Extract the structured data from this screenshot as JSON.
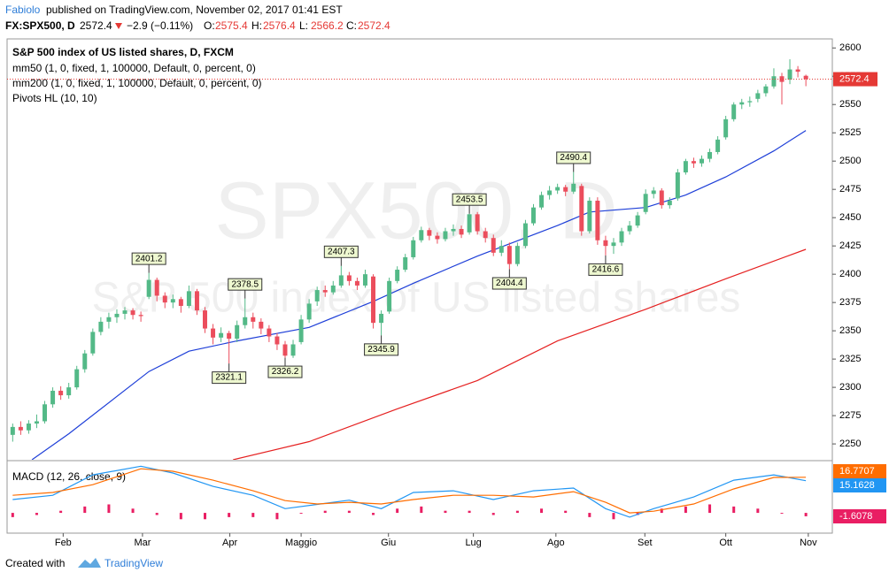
{
  "header": {
    "author": "Fabiolo",
    "published": "published on TradingView.com, November 02, 2017 01:41 EST",
    "symbol": "FX:SPX500, D",
    "last": 2572.4,
    "change": "−2.9 (−0.11%)",
    "ohlc": [
      {
        "label": "O:",
        "value": 2575.4
      },
      {
        "label": "H:",
        "value": 2576.4
      },
      {
        "label": "L:",
        "value": 2566.2
      },
      {
        "label": "C:",
        "value": 2572.4
      }
    ]
  },
  "chart_data": {
    "type": "candlestick",
    "title": "S&P 500 index of US listed shares, D, FXCM",
    "watermark": [
      "SPX500, D",
      "S&P 500 index of US listed shares"
    ],
    "up_color": "#53b987",
    "down_color": "#eb4d5c",
    "xlim": [
      -0.7,
      102.3
    ],
    "xticks": [
      {
        "value": 6.3,
        "label": "Feb"
      },
      {
        "value": 16.2,
        "label": "Mar"
      },
      {
        "value": 27.1,
        "label": "Apr"
      },
      {
        "value": 36.0,
        "label": "Maggio"
      },
      {
        "value": 46.9,
        "label": "Giu"
      },
      {
        "value": 57.5,
        "label": "Lug"
      },
      {
        "value": 67.8,
        "label": "Ago"
      },
      {
        "value": 78.9,
        "label": "Set"
      },
      {
        "value": 89.0,
        "label": "Ott"
      },
      {
        "value": 99.3,
        "label": "Nov"
      }
    ],
    "ylim": [
      2236,
      2608
    ],
    "yticks": [
      2250,
      2275,
      2300,
      2325,
      2350,
      2375,
      2400,
      2425,
      2450,
      2475,
      2500,
      2525,
      2550,
      2575,
      2600
    ],
    "ohlc": [
      [
        2258,
        2268,
        2252,
        2265
      ],
      [
        2265,
        2270,
        2258,
        2262
      ],
      [
        2262,
        2271,
        2259,
        2268
      ],
      [
        2268,
        2276,
        2264,
        2270
      ],
      [
        2270,
        2288,
        2268,
        2285
      ],
      [
        2285,
        2300,
        2282,
        2297
      ],
      [
        2297,
        2301,
        2289,
        2293
      ],
      [
        2293,
        2304,
        2290,
        2300
      ],
      [
        2300,
        2319,
        2298,
        2316
      ],
      [
        2316,
        2333,
        2313,
        2330
      ],
      [
        2330,
        2352,
        2328,
        2349
      ],
      [
        2349,
        2362,
        2346,
        2358
      ],
      [
        2358,
        2366,
        2352,
        2362
      ],
      [
        2362,
        2369,
        2357,
        2365
      ],
      [
        2365,
        2371,
        2360,
        2368
      ],
      [
        2368,
        2370,
        2360,
        2364
      ],
      [
        2364,
        2367,
        2358,
        2363
      ],
      [
        2380,
        2401.2,
        2378,
        2395
      ],
      [
        2395,
        2397,
        2376,
        2381
      ],
      [
        2381,
        2384,
        2370,
        2375
      ],
      [
        2375,
        2382,
        2370,
        2378
      ],
      [
        2378,
        2380,
        2366,
        2372
      ],
      [
        2372,
        2390,
        2370,
        2385
      ],
      [
        2385,
        2387,
        2364,
        2368
      ],
      [
        2368,
        2371,
        2348,
        2352
      ],
      [
        2352,
        2356,
        2338,
        2344
      ],
      [
        2344,
        2353,
        2340,
        2348
      ],
      [
        2348,
        2350,
        2321.1,
        2343
      ],
      [
        2343,
        2359,
        2340,
        2355
      ],
      [
        2355,
        2378.5,
        2352,
        2362
      ],
      [
        2362,
        2366,
        2352,
        2358
      ],
      [
        2358,
        2361,
        2347,
        2352
      ],
      [
        2352,
        2355,
        2340,
        2345
      ],
      [
        2345,
        2348,
        2333,
        2338
      ],
      [
        2338,
        2341,
        2326.2,
        2328
      ],
      [
        2328,
        2342,
        2326,
        2338
      ],
      [
        2340,
        2364,
        2338,
        2360
      ],
      [
        2360,
        2378,
        2357,
        2374
      ],
      [
        2376,
        2389,
        2372,
        2386
      ],
      [
        2386,
        2390,
        2380,
        2384
      ],
      [
        2384,
        2394,
        2382,
        2390
      ],
      [
        2390,
        2407.3,
        2388,
        2399
      ],
      [
        2399,
        2402,
        2390,
        2394
      ],
      [
        2394,
        2397,
        2386,
        2390
      ],
      [
        2390,
        2404,
        2388,
        2400
      ],
      [
        2398,
        2400,
        2352,
        2357
      ],
      [
        2357,
        2368,
        2345.9,
        2365
      ],
      [
        2367,
        2397,
        2365,
        2394
      ],
      [
        2394,
        2407,
        2392,
        2404
      ],
      [
        2404,
        2418,
        2402,
        2415
      ],
      [
        2415,
        2433,
        2413,
        2430
      ],
      [
        2430,
        2442,
        2428,
        2439
      ],
      [
        2439,
        2441,
        2430,
        2434
      ],
      [
        2434,
        2437,
        2427,
        2431
      ],
      [
        2431,
        2441,
        2429,
        2438
      ],
      [
        2438,
        2444,
        2434,
        2440
      ],
      [
        2440,
        2443,
        2432,
        2435
      ],
      [
        2437,
        2453.5,
        2435,
        2453
      ],
      [
        2453,
        2455,
        2435,
        2438
      ],
      [
        2438,
        2441,
        2428,
        2432
      ],
      [
        2432,
        2435,
        2416,
        2419
      ],
      [
        2419,
        2430,
        2416,
        2425
      ],
      [
        2425,
        2428,
        2404.4,
        2409
      ],
      [
        2409,
        2428,
        2407,
        2425
      ],
      [
        2425,
        2448,
        2423,
        2445
      ],
      [
        2445,
        2462,
        2443,
        2459
      ],
      [
        2459,
        2473,
        2457,
        2470
      ],
      [
        2470,
        2478,
        2466,
        2474
      ],
      [
        2474,
        2480,
        2471,
        2477
      ],
      [
        2477,
        2479,
        2469,
        2473
      ],
      [
        2473,
        2490.4,
        2471,
        2480
      ],
      [
        2478,
        2480,
        2434,
        2438
      ],
      [
        2438,
        2468,
        2436,
        2465
      ],
      [
        2465,
        2468,
        2426,
        2430
      ],
      [
        2430,
        2434,
        2416.6,
        2425
      ],
      [
        2425,
        2432,
        2418,
        2428
      ],
      [
        2428,
        2441,
        2425,
        2438
      ],
      [
        2438,
        2447,
        2435,
        2443
      ],
      [
        2443,
        2455,
        2441,
        2452
      ],
      [
        2455,
        2475,
        2453,
        2471
      ],
      [
        2471,
        2477,
        2467,
        2474
      ],
      [
        2474,
        2476,
        2458,
        2461
      ],
      [
        2461,
        2468,
        2458,
        2465
      ],
      [
        2467,
        2493,
        2465,
        2490
      ],
      [
        2490,
        2502,
        2488,
        2500
      ],
      [
        2500,
        2503,
        2494,
        2498
      ],
      [
        2498,
        2505,
        2495,
        2502
      ],
      [
        2502,
        2511,
        2499,
        2508
      ],
      [
        2508,
        2522,
        2506,
        2519
      ],
      [
        2521,
        2540,
        2519,
        2537
      ],
      [
        2537,
        2552,
        2535,
        2550
      ],
      [
        2550,
        2555,
        2546,
        2552
      ],
      [
        2552,
        2557,
        2548,
        2553
      ],
      [
        2555,
        2563,
        2552,
        2560
      ],
      [
        2560,
        2568,
        2557,
        2566
      ],
      [
        2566,
        2582,
        2564,
        2575
      ],
      [
        2575,
        2578,
        2550,
        2570
      ],
      [
        2572,
        2590,
        2568,
        2581
      ],
      [
        2581,
        2584,
        2574,
        2579
      ],
      [
        2575.4,
        2576.4,
        2566.2,
        2572.4
      ]
    ],
    "last_price": 2572.4,
    "last_color": "#e53935",
    "series": [
      {
        "name": "mm50 (1, 0, fixed, 1, 100000, Default, 0, percent, 0)",
        "color": "#1e3fd8",
        "x": [
          2.4,
          7,
          17,
          22,
          28,
          37,
          45,
          50,
          58,
          68,
          72,
          79,
          84,
          89,
          95,
          99
        ],
        "values": [
          2236,
          2259,
          2314,
          2332,
          2341,
          2353,
          2376,
          2392,
          2416,
          2443,
          2455,
          2459,
          2470,
          2486,
          2509,
          2527
        ]
      },
      {
        "name": "mm200 (1, 0, fixed, 1, 100000, Default, 0, percent, 0)",
        "color": "#e52020",
        "x": [
          27.5,
          37,
          48,
          58,
          68,
          79,
          89,
          99
        ],
        "values": [
          2236,
          2252,
          2281,
          2306,
          2341,
          2369,
          2396,
          2422
        ]
      }
    ],
    "pivots_name": "Pivots HL (10, 10)",
    "pivot_highs": {
      "x": [
        17,
        29,
        41,
        57,
        70
      ],
      "values": [
        2401.2,
        2378.5,
        2407.3,
        2453.5,
        2490.4
      ]
    },
    "pivot_lows": {
      "x": [
        27,
        34,
        46,
        62,
        74
      ],
      "values": [
        2321.1,
        2326.2,
        2345.9,
        2404.4,
        2416.6
      ]
    },
    "macd": {
      "name": "MACD (12, 26, close, 9)",
      "ylim": [
        -8.3,
        24.2
      ],
      "series": [
        {
          "color": "#2196f3",
          "x": [
            0,
            5,
            10,
            16,
            20,
            25,
            30,
            34,
            38,
            42,
            46,
            50,
            55,
            60,
            65,
            70,
            74,
            77,
            80,
            85,
            90,
            95,
            99
          ],
          "values": [
            6.3,
            8.3,
            17.9,
            22,
            18.8,
            12.5,
            8.3,
            2,
            4,
            6,
            2,
            9.6,
            10.4,
            6.3,
            10.4,
            11.7,
            2,
            -2,
            2,
            7.5,
            15.4,
            17.9,
            15.1628
          ]
        },
        {
          "color": "#ff6d00",
          "x": [
            0,
            5,
            10,
            16,
            20,
            25,
            30,
            34,
            38,
            42,
            46,
            50,
            55,
            60,
            65,
            70,
            74,
            77,
            80,
            85,
            90,
            95,
            99
          ],
          "values": [
            8.3,
            9.6,
            13.3,
            20.8,
            19.6,
            15.4,
            10.4,
            5.8,
            4.2,
            5,
            4.2,
            6.3,
            8.3,
            8.3,
            7.5,
            10,
            5,
            0,
            0.8,
            4.2,
            11.3,
            16.7,
            16.7707
          ]
        }
      ],
      "histogram": {
        "color": "#e91e63",
        "x": [
          0,
          3,
          6,
          9,
          12,
          15,
          18,
          21,
          24,
          27,
          30,
          33,
          36,
          39,
          42,
          45,
          48,
          51,
          54,
          57,
          60,
          63,
          66,
          69,
          72,
          75,
          78,
          81,
          84,
          87,
          90,
          93,
          96,
          99
        ],
        "values": [
          -2,
          -1,
          1,
          3,
          4,
          2,
          -1,
          -3,
          -3,
          -2,
          -2,
          -3,
          0,
          1,
          1,
          -1,
          2,
          3,
          1,
          1,
          -1,
          1,
          2,
          1,
          -2,
          -3,
          -1,
          2,
          3,
          4,
          3,
          2,
          0,
          -1.6078
        ]
      }
    }
  },
  "footer": {
    "created": "Created with",
    "brand": "TradingView"
  }
}
